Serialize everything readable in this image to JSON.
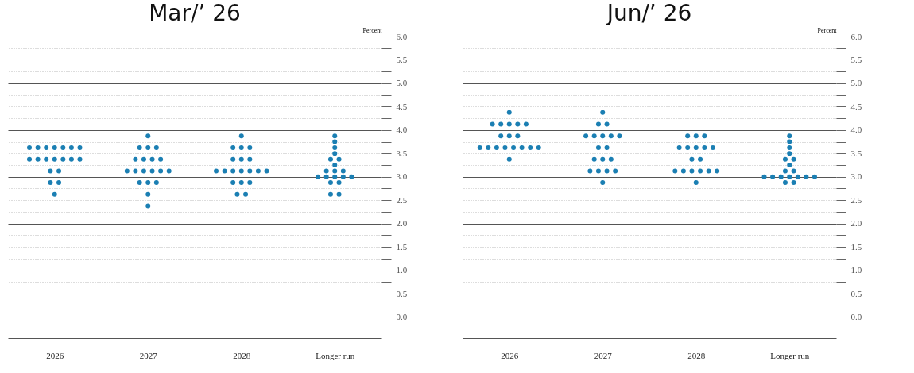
{
  "chart_data": [
    {
      "type": "scatter",
      "title": "Mar/’ 26",
      "ylabel": "Percent",
      "categories": [
        "2026",
        "2027",
        "2028",
        "Longer run"
      ],
      "marker": "circle",
      "grid": "y",
      "legend": false,
      "ylim": [
        -0.45,
        6
      ],
      "yticks": [
        {
          "value": 0,
          "label": "0.0"
        },
        {
          "value": 0.25,
          "label": null
        },
        0.5,
        {
          "value": 0.75,
          "label": null
        },
        {
          "value": 1,
          "label": "1.0"
        },
        {
          "value": 1.25,
          "label": null
        },
        1.5,
        {
          "value": 1.75,
          "label": null
        },
        {
          "value": 2,
          "label": "2.0"
        },
        {
          "value": 2.25,
          "label": null
        },
        2.5,
        {
          "value": 2.75,
          "label": null
        },
        {
          "value": 3,
          "label": "3.0"
        },
        {
          "value": 3.25,
          "label": null
        },
        3.5,
        {
          "value": 3.75,
          "label": null
        },
        {
          "value": 4,
          "label": "4.0"
        },
        {
          "value": 4.25,
          "label": null
        },
        4.5,
        {
          "value": 4.75,
          "label": null
        },
        {
          "value": 5,
          "label": "5.0"
        },
        {
          "value": 5.25,
          "label": null
        },
        5.5,
        {
          "value": 5.75,
          "label": null
        },
        {
          "value": 6,
          "label": "6.0"
        }
      ],
      "series": [
        {
          "color": "#1b7fb3",
          "values": [
            3.625,
            3.875,
            3.875,
            3.875
          ]
        },
        {
          "color": "#1b7fb3",
          "values": [
            3.625,
            3.625,
            3.625,
            3.75
          ]
        },
        {
          "color": "#1b7fb3",
          "values": [
            3.625,
            3.625,
            3.625,
            3.625
          ]
        },
        {
          "color": "#1b7fb3",
          "values": [
            3.625,
            3.625,
            3.625,
            3.5
          ]
        },
        {
          "color": "#1b7fb3",
          "values": [
            3.625,
            3.375,
            3.375,
            3.375
          ]
        },
        {
          "color": "#1b7fb3",
          "values": [
            3.625,
            3.375,
            3.375,
            3.375
          ]
        },
        {
          "color": "#1b7fb3",
          "values": [
            3.625,
            3.375,
            3.375,
            3.25
          ]
        },
        {
          "color": "#1b7fb3",
          "values": [
            3.375,
            3.375,
            3.125,
            3.125
          ]
        },
        {
          "color": "#1b7fb3",
          "values": [
            3.375,
            3.125,
            3.125,
            3.125
          ]
        },
        {
          "color": "#1b7fb3",
          "values": [
            3.375,
            3.125,
            3.125,
            3.125
          ]
        },
        {
          "color": "#1b7fb3",
          "values": [
            3.375,
            3.125,
            3.125,
            3.0
          ]
        },
        {
          "color": "#1b7fb3",
          "values": [
            3.375,
            3.125,
            3.125,
            3.0
          ]
        },
        {
          "color": "#1b7fb3",
          "values": [
            3.375,
            3.125,
            3.125,
            3.0
          ]
        },
        {
          "color": "#1b7fb3",
          "values": [
            3.375,
            3.125,
            3.125,
            3.0
          ]
        },
        {
          "color": "#1b7fb3",
          "values": [
            3.125,
            2.875,
            2.875,
            3.0
          ]
        },
        {
          "color": "#1b7fb3",
          "values": [
            3.125,
            2.875,
            2.875,
            2.875
          ]
        },
        {
          "color": "#1b7fb3",
          "values": [
            2.875,
            2.875,
            2.875,
            2.875
          ]
        },
        {
          "color": "#1b7fb3",
          "values": [
            2.875,
            2.625,
            2.625,
            2.625
          ]
        },
        {
          "color": "#1b7fb3",
          "values": [
            2.625,
            2.375,
            2.625,
            2.625
          ]
        }
      ]
    },
    {
      "type": "scatter",
      "title": "Jun/’ 26",
      "ylabel": "Percent",
      "categories": [
        "2026",
        "2027",
        "2028",
        "Longer run"
      ],
      "marker": "circle",
      "grid": "y",
      "legend": false,
      "ylim": [
        -0.45,
        6
      ],
      "yticks": [
        {
          "value": 0,
          "label": "0.0"
        },
        {
          "value": 0.25,
          "label": null
        },
        0.5,
        {
          "value": 0.75,
          "label": null
        },
        {
          "value": 1,
          "label": "1.0"
        },
        {
          "value": 1.25,
          "label": null
        },
        1.5,
        {
          "value": 1.75,
          "label": null
        },
        {
          "value": 2,
          "label": "2.0"
        },
        {
          "value": 2.25,
          "label": null
        },
        2.5,
        {
          "value": 2.75,
          "label": null
        },
        {
          "value": 3,
          "label": "3.0"
        },
        {
          "value": 3.25,
          "label": null
        },
        3.5,
        {
          "value": 3.75,
          "label": null
        },
        {
          "value": 4,
          "label": "4.0"
        },
        {
          "value": 4.25,
          "label": null
        },
        4.5,
        {
          "value": 4.75,
          "label": null
        },
        {
          "value": 5,
          "label": "5.0"
        },
        {
          "value": 5.25,
          "label": null
        },
        5.5,
        {
          "value": 5.75,
          "label": null
        },
        {
          "value": 6,
          "label": "6.0"
        }
      ],
      "series": [
        {
          "color": "#1b7fb3",
          "values": [
            4.375,
            4.375,
            3.875,
            3.875
          ]
        },
        {
          "color": "#1b7fb3",
          "values": [
            4.125,
            4.125,
            3.875,
            3.75
          ]
        },
        {
          "color": "#1b7fb3",
          "values": [
            4.125,
            4.125,
            3.875,
            3.625
          ]
        },
        {
          "color": "#1b7fb3",
          "values": [
            4.125,
            3.875,
            3.625,
            3.5
          ]
        },
        {
          "color": "#1b7fb3",
          "values": [
            4.125,
            3.875,
            3.625,
            3.375
          ]
        },
        {
          "color": "#1b7fb3",
          "values": [
            4.125,
            3.875,
            3.625,
            3.375
          ]
        },
        {
          "color": "#1b7fb3",
          "values": [
            3.875,
            3.875,
            3.625,
            3.25
          ]
        },
        {
          "color": "#1b7fb3",
          "values": [
            3.875,
            3.875,
            3.625,
            3.125
          ]
        },
        {
          "color": "#1b7fb3",
          "values": [
            3.875,
            3.625,
            3.375,
            3.125
          ]
        },
        {
          "color": "#1b7fb3",
          "values": [
            3.625,
            3.625,
            3.375,
            3.0
          ]
        },
        {
          "color": "#1b7fb3",
          "values": [
            3.625,
            3.375,
            3.125,
            3.0
          ]
        },
        {
          "color": "#1b7fb3",
          "values": [
            3.625,
            3.375,
            3.125,
            3.0
          ]
        },
        {
          "color": "#1b7fb3",
          "values": [
            3.625,
            3.375,
            3.125,
            3.0
          ]
        },
        {
          "color": "#1b7fb3",
          "values": [
            3.625,
            3.125,
            3.125,
            3.0
          ]
        },
        {
          "color": "#1b7fb3",
          "values": [
            3.625,
            3.125,
            3.125,
            3.0
          ]
        },
        {
          "color": "#1b7fb3",
          "values": [
            3.625,
            3.125,
            3.125,
            3.0
          ]
        },
        {
          "color": "#1b7fb3",
          "values": [
            3.625,
            3.125,
            2.875,
            2.875
          ]
        },
        {
          "color": "#1b7fb3",
          "values": [
            3.375,
            2.875,
            null,
            2.875
          ]
        }
      ]
    }
  ]
}
